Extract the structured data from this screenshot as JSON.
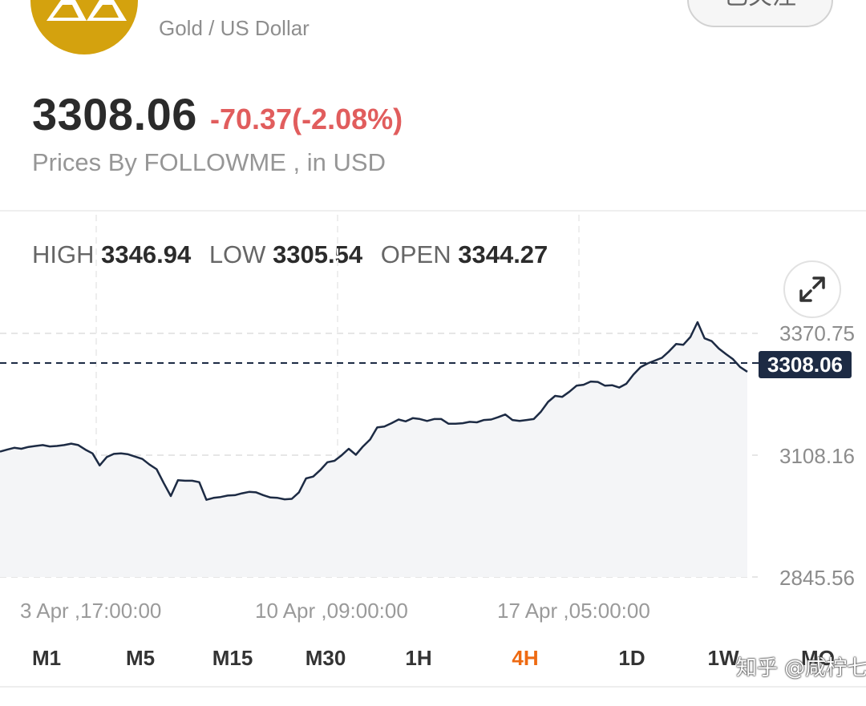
{
  "header": {
    "subtitle": "Gold / US Dollar",
    "follow_label": "已关注",
    "brand_color": "#d4a20e"
  },
  "quote": {
    "price": "3308.06",
    "change": "-70.37(-2.08%)",
    "source_prefix": "Prices By FOLLOWME",
    "source_suffix": " , in USD",
    "change_color": "#e15d5d"
  },
  "stats": {
    "high_label": "HIGH",
    "high_value": "3346.94",
    "low_label": "LOW",
    "low_value": "3305.54",
    "open_label": "OPEN",
    "open_value": "3344.27"
  },
  "chart_data": {
    "type": "line",
    "y_tick_labels": [
      "3370.75",
      "3108.16",
      "2845.56"
    ],
    "x_tick_labels": [
      "3 Apr ,17:00:00",
      "10 Apr ,09:00:00",
      "17 Apr ,05:00:00"
    ],
    "ylim": [
      2845.56,
      3370.75
    ],
    "current_value": 3308.06,
    "current_label": "3308.06",
    "grid": true,
    "fill": true,
    "line_color": "#1d2b44",
    "values": [
      3116,
      3120,
      3124,
      3122,
      3126,
      3128,
      3130,
      3127,
      3128,
      3130,
      3133,
      3130,
      3120,
      3112,
      3086,
      3104,
      3111,
      3112,
      3110,
      3105,
      3100,
      3088,
      3078,
      3048,
      3020,
      3054,
      3053,
      3053,
      3050,
      3012,
      3016,
      3018,
      3021,
      3022,
      3026,
      3029,
      3028,
      3022,
      3017,
      3016,
      3013,
      3014,
      3028,
      3058,
      3062,
      3076,
      3093,
      3096,
      3108,
      3122,
      3109,
      3127,
      3142,
      3168,
      3170,
      3177,
      3185,
      3181,
      3188,
      3186,
      3182,
      3186,
      3186,
      3176,
      3176,
      3177,
      3180,
      3179,
      3184,
      3185,
      3190,
      3196,
      3184,
      3182,
      3184,
      3186,
      3202,
      3223,
      3236,
      3234,
      3245,
      3258,
      3260,
      3267,
      3266,
      3258,
      3259,
      3254,
      3262,
      3282,
      3298,
      3306,
      3312,
      3318,
      3332,
      3348,
      3346,
      3363,
      3395,
      3360,
      3354,
      3338,
      3326,
      3315,
      3298,
      3288
    ]
  },
  "timeframes": [
    {
      "label": "M1"
    },
    {
      "label": "M5"
    },
    {
      "label": "M15"
    },
    {
      "label": "M30"
    },
    {
      "label": "1H"
    },
    {
      "label": "4H"
    },
    {
      "label": "1D"
    },
    {
      "label": "1W"
    },
    {
      "label": "MO"
    }
  ],
  "active_timeframe": "4H",
  "active_color": "#ee6a12",
  "watermark": "知乎 @咸柠七"
}
